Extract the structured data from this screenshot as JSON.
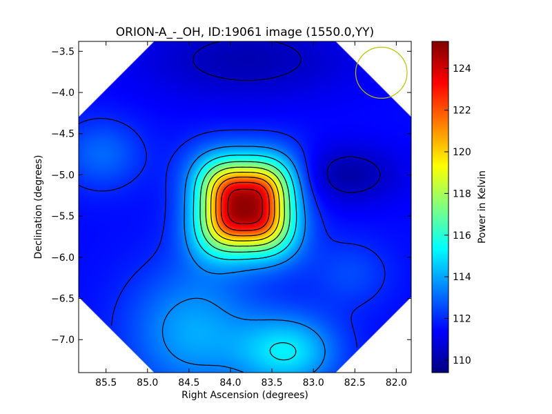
{
  "chart_data": {
    "type": "heatmap",
    "title": "ORION-A_-_OH, ID:19061 image (1550.0,YY)",
    "xlabel": "Right Ascension (degrees)",
    "ylabel": "Declination (degrees)",
    "colorbar_label": "Power in Kelvin",
    "colormap": "jet",
    "xlim": [
      85.83,
      81.82
    ],
    "ylim": [
      -7.4,
      -3.38
    ],
    "x_ticks": [
      85.5,
      85.0,
      84.5,
      84.0,
      83.5,
      83.0,
      82.5,
      82.0
    ],
    "x_tick_labels": [
      "85.5",
      "85.0",
      "84.5",
      "84.0",
      "83.5",
      "83.0",
      "82.5",
      "82.0"
    ],
    "y_ticks": [
      -3.5,
      -4.0,
      -4.5,
      -5.0,
      -5.5,
      -6.0,
      -6.5,
      -7.0
    ],
    "y_tick_labels": [
      "−3.5",
      "−4.0",
      "−4.5",
      "−5.0",
      "−5.5",
      "−6.0",
      "−6.5",
      "−7.0"
    ],
    "colorbar_range": [
      109.4,
      125.3
    ],
    "colorbar_ticks": [
      110,
      112,
      114,
      116,
      118,
      120,
      122,
      124
    ],
    "colorbar_tick_labels": [
      "110",
      "112",
      "114",
      "116",
      "118",
      "120",
      "122",
      "124"
    ],
    "peak": {
      "ra": 83.82,
      "dec": -5.38,
      "value": 125.0
    },
    "features": [
      {
        "ra": 83.3,
        "dec": -7.15,
        "amp": 3.4,
        "sigma_ra": 0.42,
        "sigma_dec": 0.32
      },
      {
        "ra": 84.45,
        "dec": -6.9,
        "amp": 2.5,
        "sigma_ra": 0.55,
        "sigma_dec": 0.55
      },
      {
        "ra": 85.55,
        "dec": -4.75,
        "amp": 1.5,
        "sigma_ra": 0.35,
        "sigma_dec": 0.3
      },
      {
        "ra": 82.55,
        "dec": -6.2,
        "amp": 1.0,
        "sigma_ra": 0.35,
        "sigma_dec": 0.3
      },
      {
        "ra": 82.6,
        "dec": -5.0,
        "amp": -1.5,
        "sigma_ra": 0.45,
        "sigma_dec": 0.25
      },
      {
        "ra": 83.8,
        "dec": -3.6,
        "amp": -1.3,
        "sigma_ra": 0.9,
        "sigma_dec": 0.35
      }
    ],
    "background_level": 111.5,
    "beam_circle": {
      "ra": 82.18,
      "dec": -3.76,
      "radius_deg": 0.31,
      "color": "#bfbf00"
    },
    "contour_levels": [
      110.5,
      112.0,
      113.5,
      115.0,
      116.5,
      118.0,
      119.5,
      121.0,
      122.5,
      124.0
    ],
    "contour_color": "#000000",
    "grid": false
  }
}
